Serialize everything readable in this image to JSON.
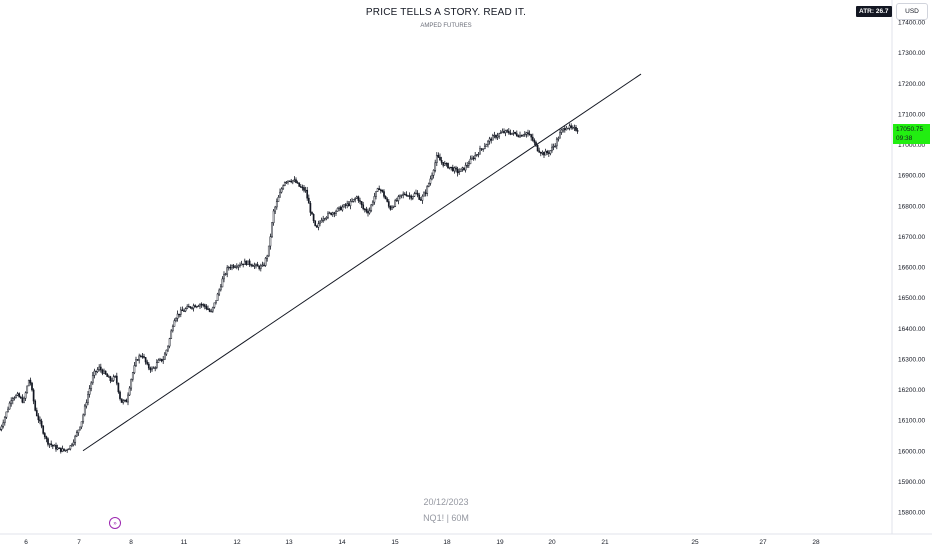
{
  "header": {
    "title": "PRICE TELLS A STORY. READ IT.",
    "subtitle": "AMPED FUTURES"
  },
  "badges": {
    "atr": "ATR: 26.7",
    "currency": "USD"
  },
  "price_label": {
    "price": "17050.75",
    "countdown": "09:38",
    "color": "#22ee11"
  },
  "watermark": {
    "date": "20/12/2023",
    "symbol": "NQ1! | 60M"
  },
  "icons": {
    "replay": "replay-forward-icon"
  },
  "chart_data": {
    "type": "candlestick",
    "y_axis": {
      "ylim": [
        15760,
        17440
      ],
      "side": "right",
      "tick_labels": [
        "15800.00",
        "15900.00",
        "16000.00",
        "16100.00",
        "16200.00",
        "16300.00",
        "16400.00",
        "16500.00",
        "16600.00",
        "16700.00",
        "16800.00",
        "16900.00",
        "17000.00",
        "17100.00",
        "17200.00",
        "17300.00",
        "17400.00"
      ]
    },
    "x_axis": {
      "tick_labels": [
        "6",
        "7",
        "8",
        "11",
        "12",
        "13",
        "14",
        "15",
        "18",
        "19",
        "20",
        "21",
        "25",
        "27",
        "28"
      ]
    },
    "trendline": {
      "from": {
        "x": "7",
        "y": 16000
      },
      "to": {
        "x": "21",
        "y": 17230
      }
    },
    "series": [
      {
        "path": [
          [
            "6",
            16070
          ],
          [
            "6",
            16120
          ],
          [
            "6",
            16175
          ],
          [
            "6",
            16180
          ],
          [
            "6",
            16160
          ],
          [
            "6",
            16240
          ],
          [
            "6",
            16130
          ],
          [
            "6",
            16080
          ],
          [
            "6",
            16030
          ],
          [
            "7",
            16015
          ],
          [
            "7",
            16005
          ],
          [
            "7",
            16000
          ],
          [
            "7",
            16015
          ],
          [
            "7",
            16050
          ],
          [
            "7",
            16100
          ],
          [
            "7",
            16180
          ],
          [
            "7",
            16250
          ],
          [
            "7",
            16270
          ],
          [
            "8",
            16250
          ],
          [
            "8",
            16230
          ],
          [
            "8",
            16240
          ],
          [
            "8",
            16160
          ],
          [
            "8",
            16160
          ],
          [
            "8",
            16240
          ],
          [
            "8",
            16300
          ],
          [
            "8",
            16315
          ],
          [
            "8",
            16275
          ],
          [
            "8",
            16265
          ],
          [
            "11",
            16290
          ],
          [
            "11",
            16300
          ],
          [
            "11",
            16350
          ],
          [
            "11",
            16430
          ],
          [
            "11",
            16450
          ],
          [
            "11",
            16460
          ],
          [
            "11",
            16470
          ],
          [
            "11",
            16475
          ],
          [
            "11",
            16480
          ],
          [
            "11",
            16470
          ],
          [
            "12",
            16450
          ],
          [
            "12",
            16500
          ],
          [
            "12",
            16560
          ],
          [
            "12",
            16600
          ],
          [
            "12",
            16605
          ],
          [
            "12",
            16610
          ],
          [
            "12",
            16615
          ],
          [
            "12",
            16610
          ],
          [
            "12",
            16600
          ],
          [
            "13",
            16600
          ],
          [
            "13",
            16650
          ],
          [
            "13",
            16780
          ],
          [
            "13",
            16830
          ],
          [
            "13",
            16880
          ],
          [
            "13",
            16885
          ],
          [
            "13",
            16880
          ],
          [
            "13",
            16860
          ],
          [
            "13",
            16850
          ],
          [
            "13",
            16780
          ],
          [
            "14",
            16720
          ],
          [
            "14",
            16760
          ],
          [
            "14",
            16770
          ],
          [
            "14",
            16780
          ],
          [
            "14",
            16790
          ],
          [
            "14",
            16800
          ],
          [
            "14",
            16810
          ],
          [
            "14",
            16830
          ],
          [
            "14",
            16790
          ],
          [
            "15",
            16780
          ],
          [
            "15",
            16830
          ],
          [
            "15",
            16860
          ],
          [
            "15",
            16830
          ],
          [
            "15",
            16790
          ],
          [
            "15",
            16810
          ],
          [
            "15",
            16830
          ],
          [
            "15",
            16840
          ],
          [
            "15",
            16830
          ],
          [
            "15",
            16840
          ],
          [
            "18",
            16820
          ],
          [
            "18",
            16850
          ],
          [
            "18",
            16900
          ],
          [
            "18",
            16960
          ],
          [
            "18",
            16940
          ],
          [
            "18",
            16930
          ],
          [
            "18",
            16920
          ],
          [
            "18",
            16910
          ],
          [
            "18",
            16920
          ],
          [
            "18",
            16940
          ],
          [
            "19",
            16960
          ],
          [
            "19",
            16980
          ],
          [
            "19",
            17000
          ],
          [
            "19",
            17020
          ],
          [
            "19",
            17030
          ],
          [
            "19",
            17040
          ],
          [
            "19",
            17040
          ],
          [
            "19",
            17035
          ],
          [
            "19",
            17030
          ],
          [
            "20",
            17040
          ],
          [
            "20",
            17020
          ],
          [
            "20",
            16985
          ],
          [
            "20",
            16970
          ],
          [
            "20",
            16975
          ],
          [
            "20",
            17000
          ],
          [
            "20",
            17040
          ],
          [
            "20",
            17060
          ],
          [
            "20",
            17050
          ]
        ]
      }
    ]
  }
}
